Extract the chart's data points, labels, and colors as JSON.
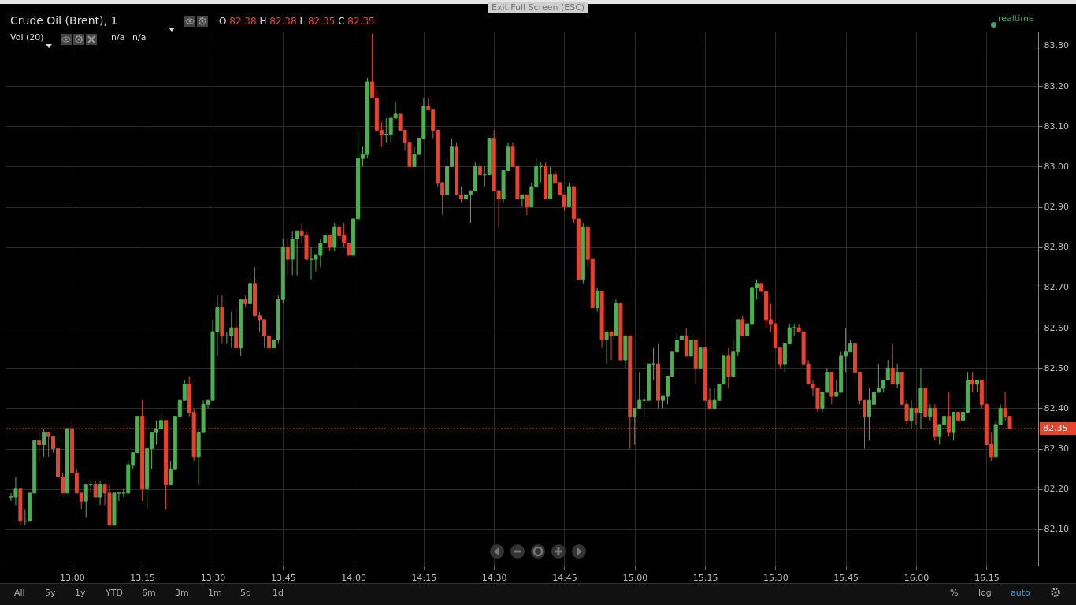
{
  "chart_data": {
    "type": "candlestick",
    "title": "Crude Oil (Brent), 1",
    "annotations": [
      "O 82.38 H 82.38 L 82.35 C 82.35",
      "Vol (20)",
      "n/a",
      "n/a",
      "realtime",
      "Exit Full Screen (ESC)",
      "All",
      "5y",
      "1y",
      "YTD",
      "6m",
      "3m",
      "1m",
      "5d",
      "1d",
      "%",
      "log",
      "auto"
    ],
    "x": [
      12.7833,
      12.8,
      12.8167,
      12.8333,
      12.85,
      12.8667,
      12.8833,
      12.9,
      12.9167,
      12.9333,
      12.95,
      12.9667,
      12.9833,
      13,
      13.0167,
      13.0333,
      13.05,
      13.0667,
      13.0833,
      13.1,
      13.1167,
      13.1333,
      13.15,
      13.1667,
      13.1833,
      13.2,
      13.2167,
      13.2333,
      13.25,
      13.2667,
      13.2833,
      13.3,
      13.3167,
      13.3333,
      13.35,
      13.3667,
      13.3833,
      13.4,
      13.4167,
      13.4333,
      13.45,
      13.4667,
      13.4833,
      13.5,
      13.5167,
      13.5333,
      13.55,
      13.5667,
      13.5833,
      13.6,
      13.6167,
      13.6333,
      13.65,
      13.6667,
      13.6833,
      13.7,
      13.7167,
      13.7333,
      13.75,
      13.7667,
      13.7833,
      13.8,
      13.8167,
      13.8333,
      13.85,
      13.8667,
      13.8833,
      13.9,
      13.9167,
      13.9333,
      13.95,
      13.9667,
      13.9833,
      14,
      14.0167,
      14.0333,
      14.05,
      14.0667,
      14.0833,
      14.1,
      14.1167,
      14.1333,
      14.15,
      14.1667,
      14.1833,
      14.2,
      14.2167,
      14.2333,
      14.25,
      14.2667,
      14.2833,
      14.3,
      14.3167,
      14.3333,
      14.35,
      14.3667,
      14.3833,
      14.4,
      14.4167,
      14.4333,
      14.45,
      14.4667,
      14.4833,
      14.5,
      14.5167,
      14.5333,
      14.55,
      14.5667,
      14.5833,
      14.6,
      14.6167,
      14.6333,
      14.65,
      14.6667,
      14.6833,
      14.7,
      14.7167,
      14.7333,
      14.75,
      14.7667,
      14.7833,
      14.8,
      14.8167,
      14.8333,
      14.85,
      14.8667,
      14.8833,
      14.9,
      14.9167,
      14.9333,
      14.95,
      14.9667,
      14.9833,
      15,
      15.0167,
      15.0333,
      15.05,
      15.0667,
      15.0833,
      15.1,
      15.1167,
      15.1333,
      15.15,
      15.1667,
      15.1833,
      15.2,
      15.2167,
      15.2333,
      15.25,
      15.2667,
      15.2833,
      15.3,
      15.3167,
      15.3333,
      15.35,
      15.3667,
      15.3833,
      15.4,
      15.4167,
      15.4333,
      15.45,
      15.4667,
      15.4833,
      15.5,
      15.5167,
      15.5333,
      15.55,
      15.5667,
      15.5833,
      15.6,
      15.6167,
      15.6333,
      15.65,
      15.6667,
      15.6833,
      15.7,
      15.7167,
      15.7333,
      15.75,
      15.7667,
      15.7833,
      15.8,
      15.8167,
      15.8333,
      15.85,
      15.8667,
      15.8833,
      15.9,
      15.9167,
      15.9333,
      15.95,
      15.9667,
      15.9833,
      16,
      16.0167,
      16.0333,
      16.05,
      16.0667,
      16.0833,
      16.1,
      16.1167,
      16.1333,
      16.15,
      16.1667,
      16.1833,
      16.2,
      16.2167,
      16.2333,
      16.25,
      16.2667,
      16.2833,
      16.3,
      16.3167,
      16.3333
    ],
    "ohlc": [
      [
        82.18,
        82.19,
        82.17,
        82.18
      ],
      [
        82.18,
        82.23,
        82.16,
        82.2
      ],
      [
        82.2,
        82.2,
        82.11,
        82.12
      ],
      [
        82.12,
        82.15,
        82.11,
        82.12
      ],
      [
        82.12,
        82.19,
        82.12,
        82.19
      ],
      [
        82.19,
        82.32,
        82.19,
        82.32
      ],
      [
        82.32,
        82.35,
        82.27,
        82.31
      ],
      [
        82.31,
        82.35,
        82.28,
        82.34
      ],
      [
        82.34,
        82.34,
        82.28,
        82.33
      ],
      [
        82.33,
        82.33,
        82.29,
        82.3
      ],
      [
        82.3,
        82.32,
        82.22,
        82.23
      ],
      [
        82.23,
        82.24,
        82.19,
        82.19
      ],
      [
        82.19,
        82.35,
        82.19,
        82.35
      ],
      [
        82.35,
        82.37,
        82.23,
        82.24
      ],
      [
        82.24,
        82.25,
        82.19,
        82.19
      ],
      [
        82.19,
        82.19,
        82.15,
        82.17
      ],
      [
        82.17,
        82.21,
        82.13,
        82.21
      ],
      [
        82.21,
        82.22,
        82.19,
        82.21
      ],
      [
        82.21,
        82.22,
        82.18,
        82.18
      ],
      [
        82.18,
        82.22,
        82.16,
        82.21
      ],
      [
        82.21,
        82.21,
        82.16,
        82.19
      ],
      [
        82.19,
        82.21,
        82.11,
        82.11
      ],
      [
        82.11,
        82.19,
        82.11,
        82.19
      ],
      [
        82.19,
        82.19,
        82.17,
        82.19
      ],
      [
        82.19,
        82.2,
        82.18,
        82.19
      ],
      [
        82.19,
        82.27,
        82.19,
        82.26
      ],
      [
        82.26,
        82.29,
        82.25,
        82.29
      ],
      [
        82.29,
        82.38,
        82.29,
        82.38
      ],
      [
        82.38,
        82.42,
        82.17,
        82.2
      ],
      [
        82.2,
        82.3,
        82.15,
        82.3
      ],
      [
        82.3,
        82.34,
        82.25,
        82.34
      ],
      [
        82.34,
        82.37,
        82.31,
        82.35
      ],
      [
        82.35,
        82.39,
        82.35,
        82.37
      ],
      [
        82.37,
        82.37,
        82.15,
        82.21
      ],
      [
        82.21,
        82.27,
        82.21,
        82.25
      ],
      [
        82.25,
        82.38,
        82.25,
        82.38
      ],
      [
        82.38,
        82.42,
        82.38,
        82.42
      ],
      [
        82.42,
        82.47,
        82.42,
        82.46
      ],
      [
        82.46,
        82.48,
        82.38,
        82.39
      ],
      [
        82.39,
        82.4,
        82.27,
        82.28
      ],
      [
        82.28,
        82.35,
        82.21,
        82.34
      ],
      [
        82.34,
        82.42,
        82.34,
        82.41
      ],
      [
        82.41,
        82.42,
        82.4,
        82.42
      ],
      [
        82.42,
        82.62,
        82.42,
        82.59
      ],
      [
        82.59,
        82.68,
        82.53,
        82.65
      ],
      [
        82.65,
        82.68,
        82.56,
        82.58
      ],
      [
        82.58,
        82.59,
        82.56,
        82.58
      ],
      [
        82.58,
        82.64,
        82.55,
        82.6
      ],
      [
        82.6,
        82.65,
        82.55,
        82.55
      ],
      [
        82.55,
        82.67,
        82.53,
        82.67
      ],
      [
        82.67,
        82.68,
        82.65,
        82.66
      ],
      [
        82.66,
        82.74,
        82.64,
        82.71
      ],
      [
        82.71,
        82.75,
        82.63,
        82.63
      ],
      [
        82.63,
        82.64,
        82.59,
        82.62
      ],
      [
        82.62,
        82.62,
        82.55,
        82.58
      ],
      [
        82.58,
        82.58,
        82.55,
        82.55
      ],
      [
        82.55,
        82.57,
        82.55,
        82.57
      ],
      [
        82.57,
        82.68,
        82.56,
        82.67
      ],
      [
        82.67,
        82.82,
        82.66,
        82.8
      ],
      [
        82.8,
        82.82,
        82.73,
        82.77
      ],
      [
        82.77,
        82.84,
        82.73,
        82.82
      ],
      [
        82.82,
        82.84,
        82.73,
        82.84
      ],
      [
        82.84,
        82.86,
        82.81,
        82.83
      ],
      [
        82.83,
        82.84,
        82.77,
        82.77
      ],
      [
        82.77,
        82.8,
        82.72,
        82.77
      ],
      [
        82.77,
        82.78,
        82.74,
        82.78
      ],
      [
        82.78,
        82.82,
        82.75,
        82.81
      ],
      [
        82.81,
        82.83,
        82.81,
        82.83
      ],
      [
        82.83,
        82.83,
        82.79,
        82.8
      ],
      [
        82.8,
        82.86,
        82.79,
        82.85
      ],
      [
        82.85,
        82.85,
        82.82,
        82.83
      ],
      [
        82.83,
        82.86,
        82.8,
        82.81
      ],
      [
        82.81,
        82.81,
        82.78,
        82.78
      ],
      [
        82.78,
        82.87,
        82.78,
        82.87
      ],
      [
        82.87,
        83.09,
        82.86,
        83.02
      ],
      [
        83.02,
        83.05,
        83.0,
        83.03
      ],
      [
        83.03,
        83.22,
        83.02,
        83.21
      ],
      [
        83.21,
        83.33,
        83.17,
        83.17
      ],
      [
        83.17,
        83.19,
        83.09,
        83.09
      ],
      [
        83.09,
        83.11,
        83.05,
        83.08
      ],
      [
        83.08,
        83.12,
        83.06,
        83.08
      ],
      [
        83.08,
        83.12,
        83.06,
        83.12
      ],
      [
        83.12,
        83.16,
        83.12,
        83.13
      ],
      [
        83.13,
        83.13,
        83.09,
        83.09
      ],
      [
        83.09,
        83.09,
        83.04,
        83.06
      ],
      [
        83.06,
        83.06,
        83.0,
        83.0
      ],
      [
        83.0,
        83.05,
        83.0,
        83.03
      ],
      [
        83.03,
        83.07,
        83.03,
        83.07
      ],
      [
        83.07,
        83.17,
        83.07,
        83.15
      ],
      [
        83.15,
        83.17,
        83.14,
        83.14
      ],
      [
        83.14,
        83.14,
        83.07,
        83.09
      ],
      [
        83.09,
        83.09,
        82.95,
        82.96
      ],
      [
        82.96,
        82.96,
        82.88,
        82.93
      ],
      [
        82.93,
        83.02,
        82.92,
        83.0
      ],
      [
        83.0,
        83.07,
        83.0,
        83.05
      ],
      [
        83.05,
        83.06,
        82.93,
        82.93
      ],
      [
        82.93,
        82.95,
        82.91,
        82.92
      ],
      [
        82.92,
        82.96,
        82.91,
        82.93
      ],
      [
        82.93,
        82.94,
        82.86,
        82.94
      ],
      [
        82.94,
        83.01,
        82.94,
        83.0
      ],
      [
        83.0,
        83.01,
        82.98,
        82.98
      ],
      [
        82.98,
        83.0,
        82.95,
        82.98
      ],
      [
        82.98,
        83.07,
        82.98,
        83.07
      ],
      [
        83.07,
        83.09,
        82.94,
        82.94
      ],
      [
        82.94,
        82.94,
        82.85,
        82.92
      ],
      [
        82.92,
        82.99,
        82.91,
        82.99
      ],
      [
        82.99,
        83.06,
        82.99,
        83.05
      ],
      [
        83.05,
        83.06,
        83.0,
        83.0
      ],
      [
        83.0,
        83.0,
        82.92,
        82.92
      ],
      [
        82.92,
        82.93,
        82.9,
        82.93
      ],
      [
        82.93,
        82.93,
        82.88,
        82.9
      ],
      [
        82.9,
        82.96,
        82.9,
        82.95
      ],
      [
        82.95,
        83.02,
        82.95,
        83.0
      ],
      [
        83.0,
        83.01,
        82.96,
        83.0
      ],
      [
        83.0,
        83.01,
        82.92,
        82.92
      ],
      [
        82.92,
        83.0,
        82.92,
        82.98
      ],
      [
        82.98,
        82.99,
        82.96,
        82.96
      ],
      [
        82.96,
        82.96,
        82.93,
        82.93
      ],
      [
        82.93,
        82.93,
        82.89,
        82.9
      ],
      [
        82.9,
        82.96,
        82.9,
        82.95
      ],
      [
        82.95,
        82.95,
        82.86,
        82.87
      ],
      [
        82.87,
        82.87,
        82.72,
        82.72
      ],
      [
        82.72,
        82.86,
        82.71,
        82.85
      ],
      [
        82.85,
        82.85,
        82.75,
        82.77
      ],
      [
        82.77,
        82.77,
        82.65,
        82.65
      ],
      [
        82.65,
        82.7,
        82.64,
        82.69
      ],
      [
        82.69,
        82.69,
        82.55,
        82.57
      ],
      [
        82.57,
        82.59,
        82.51,
        82.59
      ],
      [
        82.59,
        82.59,
        82.52,
        82.58
      ],
      [
        82.58,
        82.67,
        82.58,
        82.66
      ],
      [
        82.66,
        82.66,
        82.52,
        82.52
      ],
      [
        82.52,
        82.58,
        82.5,
        82.58
      ],
      [
        82.58,
        82.58,
        82.3,
        82.38
      ],
      [
        82.38,
        82.4,
        82.31,
        82.4
      ],
      [
        82.4,
        82.49,
        82.4,
        82.42
      ],
      [
        82.42,
        82.44,
        82.38,
        82.42
      ],
      [
        82.42,
        82.51,
        82.42,
        82.51
      ],
      [
        82.51,
        82.55,
        82.47,
        82.51
      ],
      [
        82.51,
        82.56,
        82.4,
        82.42
      ],
      [
        82.42,
        82.43,
        82.4,
        82.43
      ],
      [
        82.43,
        82.48,
        82.41,
        82.48
      ],
      [
        82.48,
        82.54,
        82.48,
        82.54
      ],
      [
        82.54,
        82.59,
        82.54,
        82.57
      ],
      [
        82.57,
        82.58,
        82.57,
        82.58
      ],
      [
        82.58,
        82.6,
        82.53,
        82.53
      ],
      [
        82.53,
        82.57,
        82.53,
        82.57
      ],
      [
        82.57,
        82.57,
        82.46,
        82.5
      ],
      [
        82.5,
        82.55,
        82.5,
        82.55
      ],
      [
        82.55,
        82.55,
        82.42,
        82.42
      ],
      [
        82.42,
        82.45,
        82.4,
        82.4
      ],
      [
        82.4,
        82.45,
        82.4,
        82.42
      ],
      [
        82.42,
        82.46,
        82.42,
        82.46
      ],
      [
        82.46,
        82.53,
        82.46,
        82.53
      ],
      [
        82.53,
        82.55,
        82.45,
        82.48
      ],
      [
        82.48,
        82.57,
        82.48,
        82.54
      ],
      [
        82.54,
        82.62,
        82.53,
        82.62
      ],
      [
        82.62,
        82.63,
        82.58,
        82.58
      ],
      [
        82.58,
        82.61,
        82.58,
        82.61
      ],
      [
        82.61,
        82.7,
        82.61,
        82.7
      ],
      [
        82.7,
        82.72,
        82.67,
        82.71
      ],
      [
        82.71,
        82.71,
        82.69,
        82.69
      ],
      [
        82.69,
        82.69,
        82.6,
        82.62
      ],
      [
        82.62,
        82.66,
        82.59,
        82.61
      ],
      [
        82.61,
        82.61,
        82.55,
        82.55
      ],
      [
        82.55,
        82.55,
        82.5,
        82.51
      ],
      [
        82.51,
        82.56,
        82.49,
        82.56
      ],
      [
        82.56,
        82.61,
        82.56,
        82.6
      ],
      [
        82.6,
        82.61,
        82.58,
        82.6
      ],
      [
        82.6,
        82.61,
        82.59,
        82.59
      ],
      [
        82.59,
        82.59,
        82.51,
        82.51
      ],
      [
        82.51,
        82.52,
        82.46,
        82.46
      ],
      [
        82.46,
        82.47,
        82.43,
        82.45
      ],
      [
        82.45,
        82.45,
        82.39,
        82.4
      ],
      [
        82.4,
        82.44,
        82.39,
        82.44
      ],
      [
        82.44,
        82.5,
        82.44,
        82.49
      ],
      [
        82.49,
        82.49,
        82.41,
        82.43
      ],
      [
        82.43,
        82.47,
        82.43,
        82.44
      ],
      [
        82.44,
        82.54,
        82.44,
        82.53
      ],
      [
        82.53,
        82.6,
        82.49,
        82.54
      ],
      [
        82.54,
        82.57,
        82.54,
        82.56
      ],
      [
        82.56,
        82.56,
        82.46,
        82.49
      ],
      [
        82.49,
        82.49,
        82.41,
        82.42
      ],
      [
        82.42,
        82.42,
        82.3,
        82.38
      ],
      [
        82.38,
        82.45,
        82.32,
        82.42
      ],
      [
        82.41,
        82.44,
        82.4,
        82.44
      ],
      [
        82.44,
        82.51,
        82.44,
        82.45
      ],
      [
        82.45,
        82.47,
        82.44,
        82.47
      ],
      [
        82.47,
        82.52,
        82.47,
        82.5
      ],
      [
        82.5,
        82.56,
        82.46,
        82.46
      ],
      [
        82.46,
        82.51,
        82.45,
        82.49
      ],
      [
        82.49,
        82.49,
        82.41,
        82.41
      ],
      [
        82.41,
        82.42,
        82.36,
        82.37
      ],
      [
        82.37,
        82.42,
        82.35,
        82.4
      ],
      [
        82.4,
        82.4,
        82.36,
        82.39
      ],
      [
        82.39,
        82.5,
        82.35,
        82.45
      ],
      [
        82.45,
        82.45,
        82.38,
        82.38
      ],
      [
        82.38,
        82.41,
        82.37,
        82.4
      ],
      [
        82.4,
        82.41,
        82.32,
        82.33
      ],
      [
        82.33,
        82.36,
        82.31,
        82.36
      ],
      [
        82.36,
        82.38,
        82.35,
        82.38
      ],
      [
        82.38,
        82.44,
        82.33,
        82.34
      ],
      [
        82.34,
        82.39,
        82.32,
        82.39
      ],
      [
        82.39,
        82.39,
        82.37,
        82.37
      ],
      [
        82.37,
        82.41,
        82.37,
        82.39
      ],
      [
        82.39,
        82.49,
        82.39,
        82.47
      ],
      [
        82.47,
        82.49,
        82.44,
        82.46
      ],
      [
        82.46,
        82.47,
        82.44,
        82.47
      ],
      [
        82.47,
        82.47,
        82.4,
        82.41
      ],
      [
        82.41,
        82.41,
        82.31,
        82.31
      ],
      [
        82.31,
        82.34,
        82.27,
        82.28
      ],
      [
        82.28,
        82.37,
        82.28,
        82.36
      ],
      [
        82.36,
        82.41,
        82.36,
        82.4
      ],
      [
        82.4,
        82.44,
        82.37,
        82.38
      ],
      [
        82.38,
        82.38,
        82.35,
        82.35
      ]
    ],
    "colors": [
      "#4cb050",
      "#4cb050",
      "#e8432d",
      "#4cb050",
      "#4cb050",
      "#4cb050",
      "#e8432d",
      "#4cb050",
      "#e8432d",
      "#e8432d",
      "#e8432d",
      "#e8432d",
      "#4cb050",
      "#e8432d",
      "#e8432d",
      "#e8432d",
      "#4cb050",
      "#4cb050",
      "#e8432d",
      "#4cb050",
      "#e8432d",
      "#e8432d",
      "#4cb050",
      "#4cb050",
      "#4cb050",
      "#4cb050",
      "#4cb050",
      "#4cb050",
      "#e8432d",
      "#4cb050",
      "#4cb050",
      "#4cb050",
      "#4cb050",
      "#e8432d",
      "#4cb050",
      "#4cb050",
      "#4cb050",
      "#4cb050",
      "#e8432d",
      "#e8432d",
      "#4cb050",
      "#4cb050",
      "#4cb050",
      "#4cb050",
      "#4cb050",
      "#e8432d",
      "#4cb050",
      "#4cb050",
      "#e8432d",
      "#4cb050",
      "#e8432d",
      "#4cb050",
      "#e8432d",
      "#e8432d",
      "#e8432d",
      "#e8432d",
      "#4cb050",
      "#4cb050",
      "#4cb050",
      "#e8432d",
      "#4cb050",
      "#4cb050",
      "#e8432d",
      "#e8432d",
      "#4cb050",
      "#4cb050",
      "#4cb050",
      "#4cb050",
      "#e8432d",
      "#4cb050",
      "#e8432d",
      "#e8432d",
      "#e8432d",
      "#4cb050",
      "#4cb050",
      "#4cb050",
      "#4cb050",
      "#e8432d",
      "#e8432d",
      "#e8432d",
      "#4cb050",
      "#4cb050",
      "#4cb050",
      "#e8432d",
      "#e8432d",
      "#e8432d",
      "#4cb050",
      "#4cb050",
      "#4cb050",
      "#e8432d",
      "#e8432d",
      "#e8432d",
      "#e8432d",
      "#4cb050",
      "#4cb050",
      "#e8432d",
      "#e8432d",
      "#4cb050",
      "#4cb050",
      "#4cb050",
      "#e8432d",
      "#4cb050",
      "#4cb050",
      "#e8432d",
      "#e8432d",
      "#4cb050",
      "#4cb050",
      "#e8432d",
      "#e8432d",
      "#4cb050",
      "#e8432d",
      "#4cb050",
      "#4cb050",
      "#4cb050",
      "#e8432d",
      "#4cb050",
      "#e8432d",
      "#e8432d",
      "#e8432d",
      "#4cb050",
      "#e8432d",
      "#e8432d",
      "#4cb050",
      "#e8432d",
      "#e8432d",
      "#4cb050",
      "#e8432d",
      "#4cb050",
      "#e8432d",
      "#4cb050",
      "#e8432d",
      "#4cb050",
      "#e8432d",
      "#4cb050",
      "#4cb050",
      "#4cb050",
      "#4cb050",
      "#4cb050",
      "#e8432d",
      "#4cb050",
      "#4cb050",
      "#4cb050",
      "#4cb050",
      "#4cb050",
      "#e8432d",
      "#4cb050",
      "#e8432d",
      "#4cb050",
      "#e8432d",
      "#e8432d",
      "#4cb050",
      "#4cb050",
      "#4cb050",
      "#e8432d",
      "#4cb050",
      "#4cb050",
      "#e8432d",
      "#4cb050",
      "#4cb050",
      "#4cb050",
      "#e8432d",
      "#e8432d",
      "#e8432d",
      "#e8432d",
      "#e8432d",
      "#4cb050",
      "#4cb050",
      "#4cb050",
      "#e8432d",
      "#e8432d",
      "#e8432d",
      "#e8432d",
      "#e8432d",
      "#4cb050",
      "#4cb050",
      "#e8432d",
      "#4cb050",
      "#4cb050",
      "#4cb050",
      "#4cb050",
      "#e8432d",
      "#e8432d",
      "#e8432d",
      "#4cb050",
      "#4cb050",
      "#4cb050",
      "#4cb050",
      "#4cb050",
      "#e8432d",
      "#4cb050",
      "#e8432d",
      "#e8432d",
      "#4cb050",
      "#e8432d",
      "#4cb050",
      "#e8432d",
      "#4cb050",
      "#e8432d",
      "#4cb050",
      "#4cb050",
      "#e8432d",
      "#4cb050",
      "#e8432d",
      "#4cb050",
      "#4cb050",
      "#e8432d",
      "#4cb050",
      "#e8432d",
      "#e8432d",
      "#e8432d",
      "#4cb050",
      "#4cb050",
      "#e8432d",
      "#e8432d"
    ],
    "xlim": [
      12.7778,
      16.42
    ],
    "xticks": [
      {
        "value": 13,
        "label": "13:00"
      },
      {
        "value": 13.25,
        "label": "13:15"
      },
      {
        "value": 13.5,
        "label": "13:30"
      },
      {
        "value": 13.75,
        "label": "13:45"
      },
      {
        "value": 14,
        "label": "14:00"
      },
      {
        "value": 14.25,
        "label": "14:15"
      },
      {
        "value": 14.5,
        "label": "14:30"
      },
      {
        "value": 14.75,
        "label": "14:45"
      },
      {
        "value": 15,
        "label": "15:00"
      },
      {
        "value": 15.25,
        "label": "15:15"
      },
      {
        "value": 15.5,
        "label": "15:30"
      },
      {
        "value": 15.75,
        "label": "15:45"
      },
      {
        "value": 16,
        "label": "16:00"
      },
      {
        "value": 16.25,
        "label": "16:15"
      }
    ],
    "ylim": [
      82.01,
      83.335
    ],
    "yticks": [
      {
        "value": 82.1,
        "label": "82.10"
      },
      {
        "value": 82.2,
        "label": "82.20"
      },
      {
        "value": 82.3,
        "label": "82.30"
      },
      {
        "value": 82.4,
        "label": "82.40"
      },
      {
        "value": 82.5,
        "label": "82.50"
      },
      {
        "value": 82.6,
        "label": "82.60"
      },
      {
        "value": 82.7,
        "label": "82.70"
      },
      {
        "value": 82.8,
        "label": "82.80"
      },
      {
        "value": 82.9,
        "label": "82.90"
      },
      {
        "value": 83,
        "label": "83.00"
      },
      {
        "value": 83.1,
        "label": "83.10"
      },
      {
        "value": 83.2,
        "label": "83.20"
      },
      {
        "value": 83.3,
        "label": "83.30"
      }
    ],
    "ref_lines": [
      {
        "axis": "y",
        "value": 82.35,
        "label": "82.35",
        "color": "#e8432d",
        "line_style": "dotted"
      }
    ],
    "grid": true
  }
}
